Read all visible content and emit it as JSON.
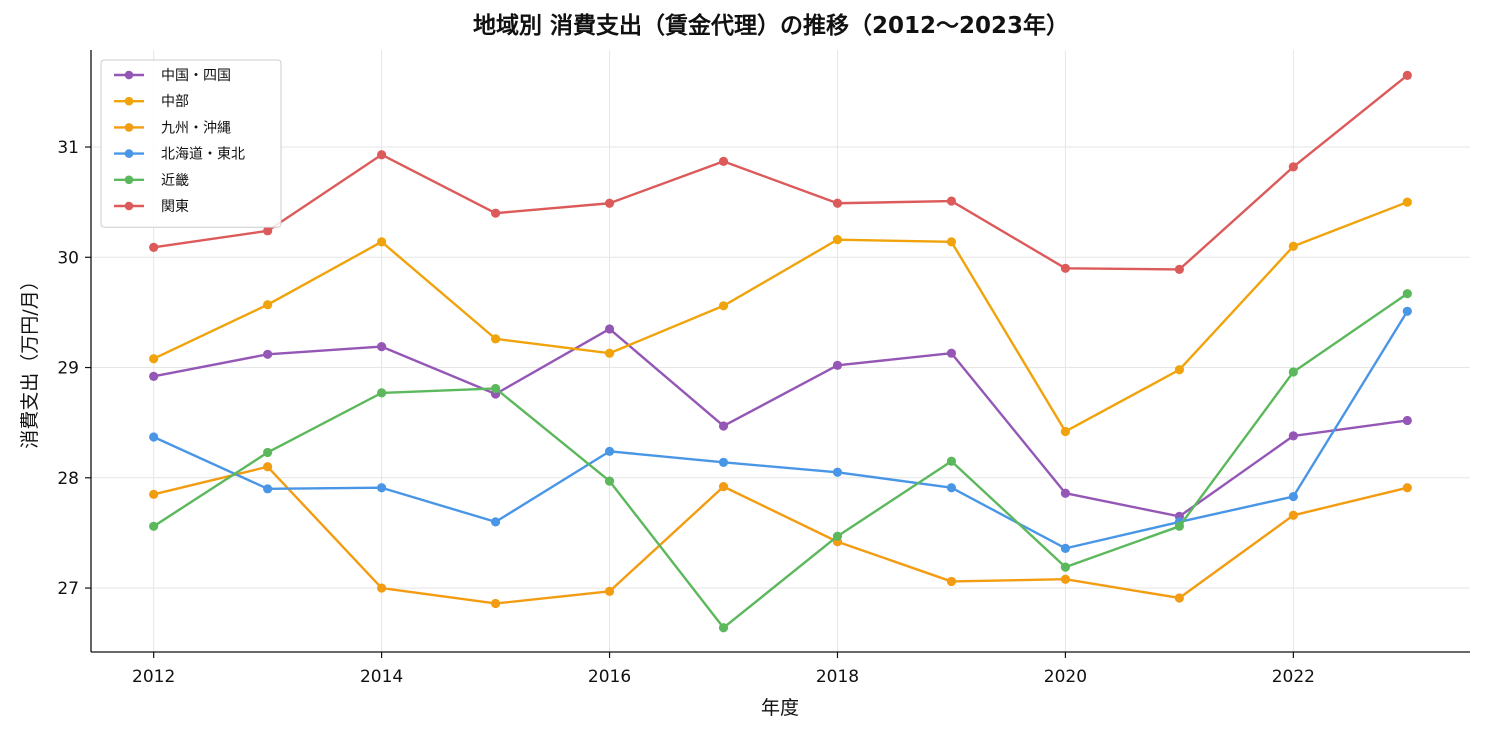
{
  "chart_data": {
    "type": "line",
    "title": "地域別 消費支出（賃金代理）の推移（2012〜2023年）",
    "xlabel": "年度",
    "ylabel": "消費支出（万円/月）",
    "x": [
      2012,
      2013,
      2014,
      2015,
      2016,
      2017,
      2018,
      2019,
      2020,
      2021,
      2022,
      2023
    ],
    "xticks": [
      2012,
      2014,
      2016,
      2018,
      2020,
      2022
    ],
    "yticks": [
      27,
      28,
      29,
      30,
      31
    ],
    "xlim": [
      2011.45,
      2023.55
    ],
    "ylim": [
      26.42,
      31.88
    ],
    "grid": true,
    "legend_position": "top-left",
    "series": [
      {
        "name": "中国・四国",
        "color": "#9457b5",
        "values": [
          28.92,
          29.12,
          29.19,
          28.76,
          29.35,
          28.47,
          29.02,
          29.13,
          27.86,
          27.65,
          28.38,
          28.52
        ]
      },
      {
        "name": "中部",
        "color": "#f0a30a",
        "values": [
          29.08,
          29.57,
          30.14,
          29.26,
          29.13,
          29.56,
          30.16,
          30.14,
          28.42,
          28.98,
          30.1,
          30.5
        ]
      },
      {
        "name": "九州・沖縄",
        "color": "#f39c12",
        "values": [
          27.85,
          28.1,
          27.0,
          26.86,
          26.97,
          27.92,
          27.42,
          27.06,
          27.08,
          26.91,
          27.66,
          27.91
        ]
      },
      {
        "name": "北海道・東北",
        "color": "#4a96e6",
        "values": [
          28.37,
          27.9,
          27.91,
          27.6,
          28.24,
          28.14,
          28.05,
          27.91,
          27.36,
          27.6,
          27.83,
          29.51
        ]
      },
      {
        "name": "近畿",
        "color": "#5cb85c",
        "values": [
          27.56,
          28.23,
          28.77,
          28.81,
          27.97,
          26.64,
          27.47,
          28.15,
          27.19,
          27.56,
          28.96,
          29.67
        ]
      },
      {
        "name": "関東",
        "color": "#dc5a5a",
        "values": [
          30.09,
          30.24,
          30.93,
          30.4,
          30.49,
          30.87,
          30.49,
          30.51,
          29.9,
          29.89,
          30.82,
          31.65
        ]
      }
    ]
  }
}
